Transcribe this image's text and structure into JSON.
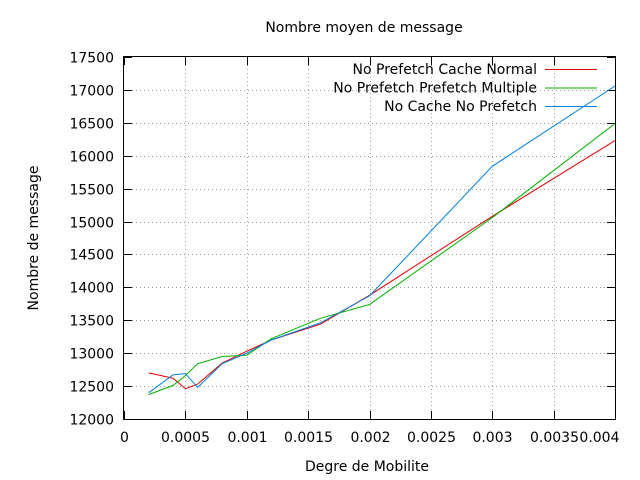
{
  "chart_data": {
    "type": "line",
    "title": "Nombre moyen de message",
    "xlabel": "Degre de Mobilite",
    "ylabel": "Nombre de message",
    "xlim": [
      0,
      0.004
    ],
    "ylim": [
      12000,
      17500
    ],
    "xticks": [
      0,
      0.0005,
      0.001,
      0.0015,
      0.002,
      0.0025,
      0.003,
      0.0035,
      0.004
    ],
    "xtick_labels": [
      "0",
      "0.0005",
      "0.001",
      "0.0015",
      "0.002",
      "0.0025",
      "0.003",
      "0.0035",
      "0.004"
    ],
    "yticks": [
      12000,
      12500,
      13000,
      13500,
      14000,
      14500,
      15000,
      15500,
      16000,
      16500,
      17000,
      17500
    ],
    "ytick_labels": [
      "12000",
      "12500",
      "13000",
      "13500",
      "14000",
      "14500",
      "15000",
      "15500",
      "16000",
      "16500",
      "17000",
      "17500"
    ],
    "grid": true,
    "legend_position": "top-right",
    "series": [
      {
        "name": "No Prefetch Cache Normal",
        "color": "#e00000",
        "x": [
          0.0002,
          0.0004,
          0.0005,
          0.0006,
          0.0008,
          0.001,
          0.0012,
          0.0016,
          0.002,
          0.003,
          0.004
        ],
        "y": [
          12700,
          12620,
          12460,
          12530,
          12850,
          13030,
          13200,
          13440,
          13880,
          15080,
          16230
        ]
      },
      {
        "name": "No Prefetch Prefetch Multiple",
        "color": "#00b000",
        "x": [
          0.0002,
          0.0004,
          0.0005,
          0.0006,
          0.0008,
          0.001,
          0.0012,
          0.0016,
          0.002,
          0.003,
          0.004
        ],
        "y": [
          12370,
          12510,
          12660,
          12840,
          12950,
          12970,
          13220,
          13530,
          13740,
          15060,
          16490
        ]
      },
      {
        "name": "No Cache No Prefetch",
        "color": "#0080e0",
        "x": [
          0.0002,
          0.0004,
          0.0005,
          0.0006,
          0.0008,
          0.001,
          0.0012,
          0.0016,
          0.002,
          0.003,
          0.004
        ],
        "y": [
          12400,
          12670,
          12690,
          12480,
          12840,
          13000,
          13200,
          13460,
          13870,
          15840,
          17060
        ]
      }
    ]
  }
}
